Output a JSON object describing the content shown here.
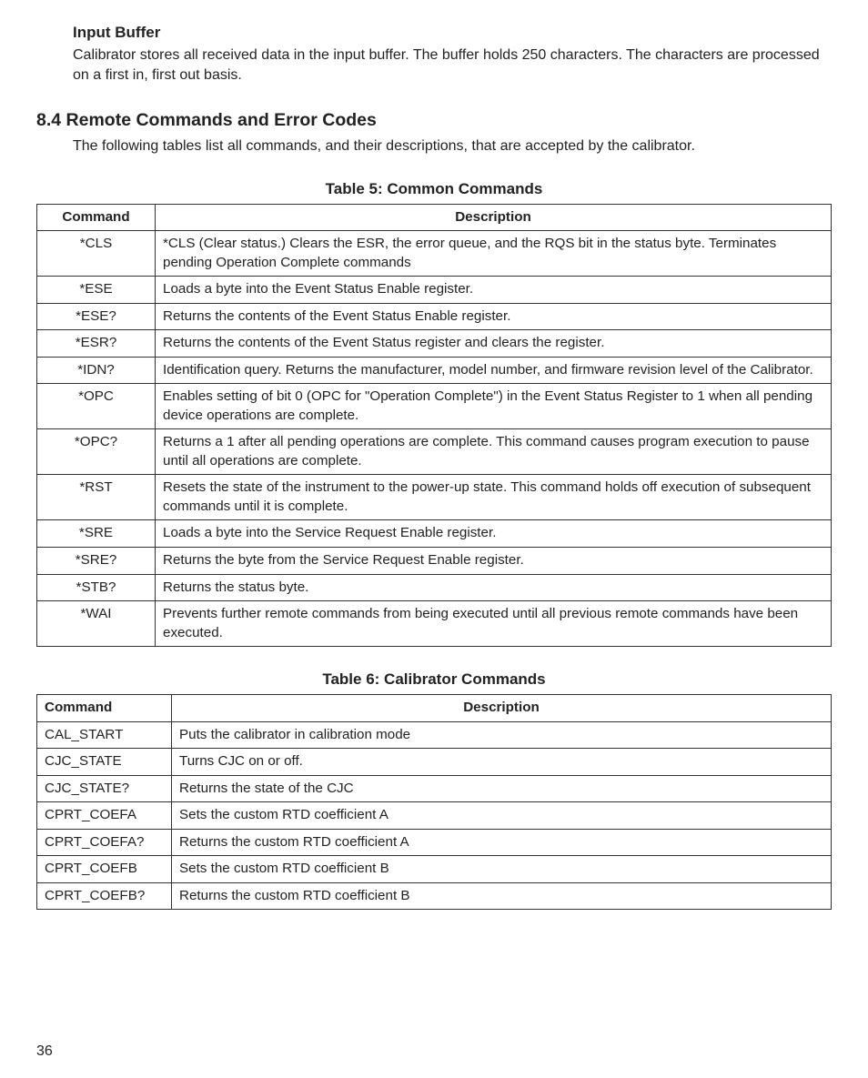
{
  "section1": {
    "heading": "Input Buffer",
    "para": "Calibrator stores all received data in the input buffer. The buffer holds 250 characters. The characters are processed on a first in, first out basis."
  },
  "section2": {
    "heading": "8.4 Remote Commands and Error Codes",
    "para": "The following tables list all commands, and their descriptions, that are accepted by the calibrator."
  },
  "table5": {
    "title": "Table 5: Common Commands",
    "header": {
      "c0": "Command",
      "c1": "Description"
    },
    "rows": [
      {
        "c0": "*CLS",
        "c1": "*CLS (Clear status.) Clears the ESR, the error queue, and the RQS bit in the status byte. Terminates pending Operation Complete commands"
      },
      {
        "c0": "*ESE",
        "c1": "Loads a byte into the Event Status Enable register."
      },
      {
        "c0": "*ESE?",
        "c1": "Returns the contents of the Event Status Enable register."
      },
      {
        "c0": "*ESR?",
        "c1": "Returns the contents of the Event Status register and clears the register."
      },
      {
        "c0": "*IDN?",
        "c1": "Identification query. Returns the manufacturer, model number, and firmware revision level of the Calibrator."
      },
      {
        "c0": "*OPC",
        "c1": "Enables setting of bit 0 (OPC for \"Operation Complete\") in the Event Status Register to 1 when all pending device operations are complete."
      },
      {
        "c0": "*OPC?",
        "c1": "Returns a 1 after all pending operations are complete. This command causes program execution to pause until all operations are complete."
      },
      {
        "c0": "*RST",
        "c1": "Resets the state of the instrument to the power-up state. This command holds off execution of subsequent commands until it is complete."
      },
      {
        "c0": "*SRE",
        "c1": "Loads a byte into the Service Request Enable register."
      },
      {
        "c0": "*SRE?",
        "c1": "Returns the byte from the Service Request Enable register."
      },
      {
        "c0": "*STB?",
        "c1": "Returns the status byte."
      },
      {
        "c0": "*WAI",
        "c1": "Prevents further remote commands from being executed until all previous remote commands have been executed."
      }
    ]
  },
  "table6": {
    "title": "Table 6: Calibrator Commands",
    "header": {
      "c0": "Command",
      "c1": "Description"
    },
    "rows": [
      {
        "c0": "CAL_START",
        "c1": "Puts the calibrator in calibration mode"
      },
      {
        "c0": "CJC_STATE",
        "c1": "Turns CJC on or off."
      },
      {
        "c0": "CJC_STATE?",
        "c1": "Returns the state of the CJC"
      },
      {
        "c0": "CPRT_COEFA",
        "c1": "Sets the custom RTD coefficient A"
      },
      {
        "c0": "CPRT_COEFA?",
        "c1": "Returns the custom RTD coefficient A"
      },
      {
        "c0": "CPRT_COEFB",
        "c1": "Sets the custom RTD coefficient B"
      },
      {
        "c0": "CPRT_COEFB?",
        "c1": "Returns the custom RTD coefficient B"
      }
    ]
  },
  "pageNumber": "36"
}
